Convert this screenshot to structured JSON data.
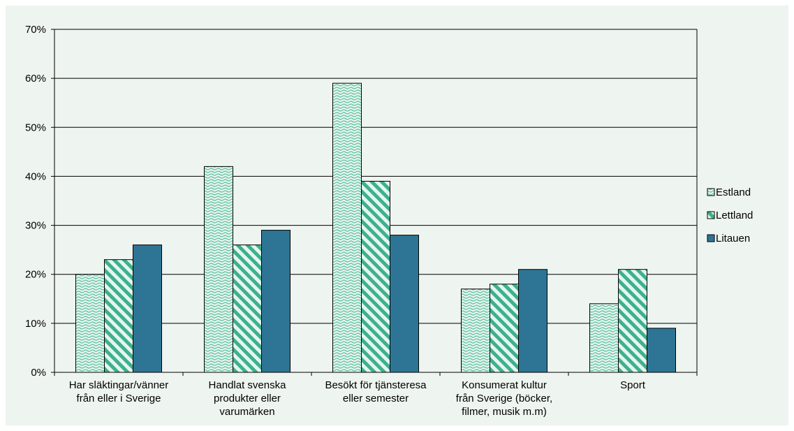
{
  "chart_data": {
    "type": "bar",
    "categories": [
      [
        "Har släktingar/vänner",
        "från eller i Sverige"
      ],
      [
        "Handlat svenska",
        "produkter eller",
        "varumärken"
      ],
      [
        "Besökt för tjänsteresa",
        "eller semester"
      ],
      [
        "Konsumerat kultur",
        "från Sverige (böcker,",
        "filmer, musik m.m)"
      ],
      [
        "Sport"
      ]
    ],
    "series": [
      {
        "name": "Estland",
        "values": [
          20,
          42,
          59,
          17,
          14
        ],
        "color": "#e6f5ee",
        "pattern_color": "#5bbfa0",
        "pattern": "wave"
      },
      {
        "name": "Lettland",
        "values": [
          23,
          26,
          39,
          18,
          21
        ],
        "color": "#e6f5ee",
        "pattern_color": "#3db08e",
        "pattern": "diagonal"
      },
      {
        "name": "Litauen",
        "values": [
          26,
          29,
          28,
          21,
          9
        ],
        "color": "#2e7595",
        "pattern": "solid"
      }
    ],
    "ylim": [
      0,
      70
    ],
    "yticks": [
      "0%",
      "10%",
      "20%",
      "30%",
      "40%",
      "50%",
      "60%",
      "70%"
    ],
    "y_unit": "%",
    "grid": true,
    "legend_position": "right",
    "title": "",
    "xlabel": "",
    "ylabel": ""
  }
}
